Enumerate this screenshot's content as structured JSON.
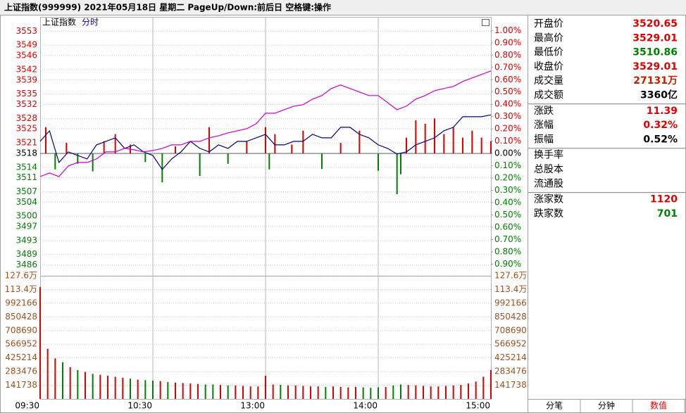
{
  "header": {
    "title": "上证指数(999999)  2021年05月18日 星期二 PageUp/Down:前后日 空格键:操作"
  },
  "chart_data": [
    {
      "type": "line",
      "title": "上证指数",
      "subtitle": "分时",
      "up_color": "#e00000",
      "down_color": "#008000",
      "grid": true,
      "x": [
        0,
        5,
        10,
        15,
        20,
        25,
        30,
        35,
        40,
        45,
        50,
        55,
        60,
        65,
        70,
        75,
        80,
        85,
        90,
        95,
        100,
        105,
        110,
        115,
        120,
        125,
        130,
        135,
        140,
        145,
        150,
        155,
        160,
        165,
        170,
        175,
        180,
        185,
        190,
        195,
        200,
        205,
        210,
        215,
        220,
        225,
        230,
        235,
        240
      ],
      "xlim": [
        0,
        240
      ],
      "series": [
        {
          "color": "#000080",
          "values": [
            3521.43,
            3524.46,
            3515.38,
            3518.4,
            3517.39,
            3516.39,
            3520.42,
            3521.43,
            3522.44,
            3519.41,
            3520.42,
            3518.4,
            3517.39,
            3513.36,
            3516.39,
            3518.4,
            3521.43,
            3519.41,
            3518.4,
            3520.42,
            3519.41,
            3521.43,
            3521.43,
            3522.44,
            3523.45,
            3520.42,
            3520.42,
            3521.43,
            3521.43,
            3523.45,
            3522.44,
            3522.44,
            3525.47,
            3525.47,
            3523.45,
            3522.44,
            3520.42,
            3519.41,
            3517.8,
            3518.4,
            3520.42,
            3521.43,
            3522.44,
            3524.46,
            3525.47,
            3528.49,
            3528.49,
            3528.49,
            3529.01
          ]
        },
        {
          "color": "#cc00cc",
          "values": [
            3511.34,
            3512.35,
            3511.34,
            3514.37,
            3515.38,
            3515.38,
            3516.39,
            3518.4,
            3518.4,
            3519.41,
            3519.01,
            3518.4,
            3518.81,
            3519.41,
            3520.42,
            3520.42,
            3521.43,
            3521.43,
            3522.44,
            3523.05,
            3523.85,
            3524.46,
            3525.06,
            3526.48,
            3529.5,
            3529.5,
            3530.51,
            3531.52,
            3531.93,
            3533.54,
            3534.55,
            3536.57,
            3537.58,
            3536.57,
            3535.56,
            3534.55,
            3534.55,
            3532.53,
            3530.51,
            3531.52,
            3533.54,
            3534.55,
            3535.96,
            3536.57,
            3537.17,
            3538.59,
            3539.59,
            3540.6,
            3541.61
          ]
        }
      ],
      "bars": {
        "x": [
          3,
          8,
          14,
          20,
          28,
          34,
          40,
          48,
          56,
          65,
          72,
          85,
          90,
          100,
          110,
          120,
          122,
          125,
          134,
          140,
          150,
          160,
          170,
          180,
          190,
          192,
          195,
          200,
          205,
          210,
          215,
          220,
          225,
          230,
          235,
          240
        ],
        "values": [
          3525.5,
          3513.4,
          3521.0,
          3515.0,
          3512.8,
          3521.5,
          3523.5,
          3520.5,
          3515.5,
          3509.7,
          3520.0,
          3511.5,
          3525.5,
          3515.0,
          3521.5,
          3525.5,
          3513.4,
          3523.5,
          3520.5,
          3524.5,
          3513.5,
          3521.0,
          3524.5,
          3513.0,
          3506.3,
          3512.0,
          3522.5,
          3527.5,
          3526.5,
          3528.0,
          3523.5,
          3525.5,
          3522.5,
          3524.5,
          3522.5,
          3521.5
        ]
      },
      "ylim": [
        3482.9,
        3556.9
      ],
      "yticks": [
        3553,
        3549,
        3546,
        3542,
        3539,
        3535,
        3532,
        3528,
        3525,
        3521,
        3518,
        3514,
        3511,
        3507,
        3504,
        3500,
        3497,
        3493,
        3489,
        3486
      ],
      "y2lim": [
        -0.995,
        1.105
      ],
      "y2ticks": [
        {
          "value": 1.0,
          "label": "1.00%"
        },
        {
          "value": 0.9,
          "label": "0.90%"
        },
        {
          "value": 0.8,
          "label": "0.80%"
        },
        {
          "value": 0.7,
          "label": "0.70%"
        },
        {
          "value": 0.6,
          "label": "0.60%"
        },
        {
          "value": 0.5,
          "label": "0.50%"
        },
        {
          "value": 0.4,
          "label": "0.40%"
        },
        {
          "value": 0.3,
          "label": "0.30%"
        },
        {
          "value": 0.2,
          "label": "0.20%"
        },
        {
          "value": 0.1,
          "label": "0.10%"
        },
        {
          "value": 0,
          "label": "0.00%"
        },
        {
          "value": -0.1,
          "label": "0.10%"
        },
        {
          "value": -0.2,
          "label": "0.20%"
        },
        {
          "value": -0.3,
          "label": "0.30%"
        },
        {
          "value": -0.4,
          "label": "0.40%"
        },
        {
          "value": -0.5,
          "label": "0.50%"
        },
        {
          "value": -0.6,
          "label": "0.60%"
        },
        {
          "value": -0.7,
          "label": "0.70%"
        },
        {
          "value": -0.8,
          "label": "0.80%"
        },
        {
          "value": -0.9,
          "label": "0.90%"
        }
      ]
    },
    {
      "type": "bar",
      "color": "#a05020",
      "x": [
        0,
        4,
        8,
        12,
        16,
        20,
        24,
        28,
        32,
        36,
        40,
        44,
        48,
        52,
        56,
        60,
        64,
        68,
        72,
        76,
        80,
        84,
        88,
        92,
        96,
        100,
        104,
        108,
        112,
        116,
        120,
        124,
        128,
        132,
        136,
        140,
        144,
        148,
        152,
        156,
        160,
        164,
        168,
        172,
        176,
        180,
        184,
        188,
        192,
        196,
        200,
        204,
        208,
        212,
        216,
        220,
        224,
        228,
        232,
        236,
        240
      ],
      "values": [
        1160000,
        520000,
        420000,
        380000,
        330000,
        300000,
        280000,
        260000,
        250000,
        240000,
        230000,
        220000,
        210000,
        200000,
        195000,
        190000,
        185000,
        175000,
        170000,
        165000,
        160000,
        155000,
        150000,
        150000,
        145000,
        140000,
        140000,
        135000,
        130000,
        130000,
        240000,
        150000,
        145000,
        140000,
        140000,
        135000,
        130000,
        130000,
        125000,
        130000,
        125000,
        120000,
        125000,
        120000,
        115000,
        120000,
        125000,
        140000,
        150000,
        145000,
        140000,
        135000,
        130000,
        130000,
        135000,
        140000,
        145000,
        160000,
        180000,
        230000,
        300000
      ],
      "xlim": [
        0,
        240
      ],
      "xticks": [
        {
          "value": 0,
          "label": "09:30"
        },
        {
          "value": 60,
          "label": "10:30"
        },
        {
          "value": 120,
          "label": "13:00"
        },
        {
          "value": 180,
          "label": "14:00"
        },
        {
          "value": 240,
          "label": "15:00"
        }
      ],
      "ylim": [
        0,
        1275642
      ],
      "yticks": [
        {
          "value": 1275642,
          "label": "127.6万"
        },
        {
          "value": 1133904,
          "label": "113.4万"
        },
        992166,
        850428,
        708690,
        566952,
        425214,
        283476,
        141738
      ]
    }
  ],
  "quote": {
    "groups": [
      {
        "rows": [
          {
            "label": "开盘价",
            "value": "3520.65",
            "color": "#e00000"
          },
          {
            "label": "最高价",
            "value": "3529.01",
            "color": "#e00000"
          },
          {
            "label": "最低价",
            "value": "3510.86",
            "color": "#008000"
          },
          {
            "label": "收盘价",
            "value": "3529.01",
            "color": "#e00000"
          },
          {
            "label": "成交量",
            "value": "27131万",
            "color": "#c02000"
          },
          {
            "label": "成交额",
            "value": "3360亿",
            "color": "#000000"
          }
        ]
      },
      {
        "rows": [
          {
            "label": "涨跌",
            "value": "11.39",
            "color": "#e00000"
          },
          {
            "label": "涨幅",
            "value": "0.32%",
            "color": "#e00000"
          },
          {
            "label": "振幅",
            "value": "0.52%",
            "color": "#000000"
          }
        ]
      },
      {
        "rows": [
          {
            "label": "换手率"
          },
          {
            "label": "总股本"
          },
          {
            "label": "流通股"
          }
        ]
      },
      {
        "rows": [
          {
            "label": "涨家数",
            "value": "1120",
            "color": "#e00000"
          },
          {
            "label": "跌家数",
            "value": "701",
            "color": "#008000"
          }
        ]
      }
    ]
  },
  "tabs": [
    "分笔",
    "分钟",
    "数值"
  ],
  "active_tab": 2
}
